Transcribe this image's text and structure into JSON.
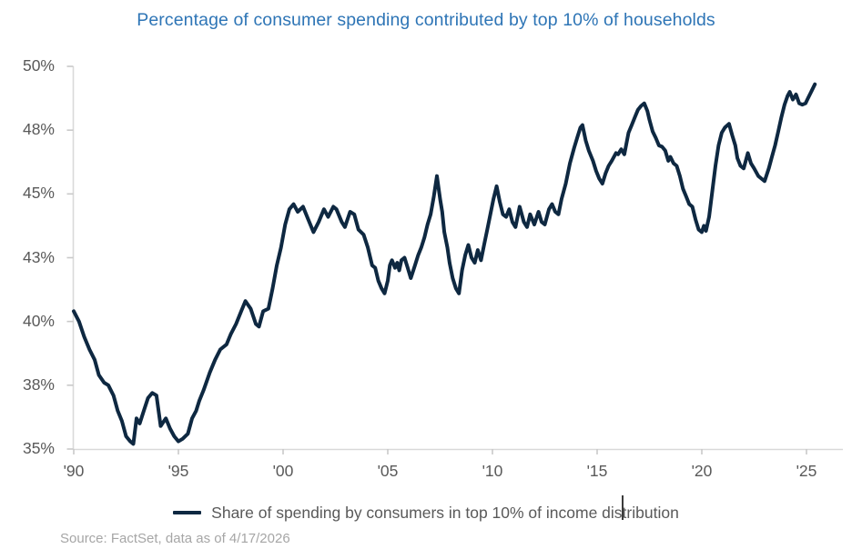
{
  "title": {
    "text": "Percentage of consumer spending contributed by top 10% of households",
    "color": "#2E75B6"
  },
  "legend": {
    "label": "Share of spending by consumers in top 10% of income distribution",
    "marker_color": "#0E2841"
  },
  "source": {
    "text": "Source: FactSet, data as of 4/17/2026"
  },
  "colors": {
    "line": "#0E2841",
    "axis": "#D9D9D9",
    "tick": "#C9C9C9",
    "tick_text": "#595959",
    "legend_text": "#595959",
    "source_text": "#A6A6A6"
  },
  "chart_data": {
    "type": "line",
    "title": "Percentage of consumer spending contributed by top 10% of households",
    "xlabel": "",
    "ylabel": "",
    "xlim": [
      1990,
      2026.2
    ],
    "ylim": [
      35,
      50
    ],
    "grid": false,
    "legend_position": "bottom",
    "x_ticks": [
      {
        "value": 1990,
        "label": "'90"
      },
      {
        "value": 1995,
        "label": "'95"
      },
      {
        "value": 2000,
        "label": "'00"
      },
      {
        "value": 2005,
        "label": "'05"
      },
      {
        "value": 2010,
        "label": "'10"
      },
      {
        "value": 2015,
        "label": "'15"
      },
      {
        "value": 2020,
        "label": "'20"
      },
      {
        "value": 2025,
        "label": "'25"
      }
    ],
    "y_ticks": [
      {
        "value": 35.0,
        "label": "35%"
      },
      {
        "value": 37.5,
        "label": "38%"
      },
      {
        "value": 40.0,
        "label": "40%"
      },
      {
        "value": 42.5,
        "label": "43%"
      },
      {
        "value": 45.0,
        "label": "45%"
      },
      {
        "value": 47.5,
        "label": "48%"
      },
      {
        "value": 50.0,
        "label": "50%"
      }
    ],
    "series": [
      {
        "name": "Share of spending by consumers in top 10% of income distribution",
        "color": "#0E2841",
        "points": [
          [
            1990.0,
            40.4
          ],
          [
            1990.25,
            40.0
          ],
          [
            1990.5,
            39.4
          ],
          [
            1990.75,
            38.9
          ],
          [
            1991.0,
            38.5
          ],
          [
            1991.2,
            37.9
          ],
          [
            1991.45,
            37.6
          ],
          [
            1991.65,
            37.5
          ],
          [
            1991.9,
            37.1
          ],
          [
            1992.1,
            36.5
          ],
          [
            1992.3,
            36.1
          ],
          [
            1992.5,
            35.5
          ],
          [
            1992.7,
            35.3
          ],
          [
            1992.85,
            35.2
          ],
          [
            1993.0,
            36.2
          ],
          [
            1993.15,
            36.0
          ],
          [
            1993.35,
            36.5
          ],
          [
            1993.55,
            37.0
          ],
          [
            1993.75,
            37.2
          ],
          [
            1993.95,
            37.1
          ],
          [
            1994.15,
            35.9
          ],
          [
            1994.4,
            36.2
          ],
          [
            1994.6,
            35.8
          ],
          [
            1994.8,
            35.5
          ],
          [
            1995.0,
            35.3
          ],
          [
            1995.2,
            35.4
          ],
          [
            1995.45,
            35.6
          ],
          [
            1995.65,
            36.2
          ],
          [
            1995.85,
            36.5
          ],
          [
            1996.0,
            36.9
          ],
          [
            1996.2,
            37.3
          ],
          [
            1996.5,
            38.0
          ],
          [
            1996.75,
            38.5
          ],
          [
            1997.0,
            38.9
          ],
          [
            1997.3,
            39.1
          ],
          [
            1997.5,
            39.5
          ],
          [
            1997.75,
            39.9
          ],
          [
            1998.0,
            40.4
          ],
          [
            1998.2,
            40.8
          ],
          [
            1998.45,
            40.5
          ],
          [
            1998.7,
            39.9
          ],
          [
            1998.85,
            39.8
          ],
          [
            1999.05,
            40.4
          ],
          [
            1999.3,
            40.5
          ],
          [
            1999.5,
            41.3
          ],
          [
            1999.7,
            42.2
          ],
          [
            1999.9,
            42.9
          ],
          [
            2000.1,
            43.8
          ],
          [
            2000.3,
            44.4
          ],
          [
            2000.5,
            44.6
          ],
          [
            2000.7,
            44.3
          ],
          [
            2000.95,
            44.5
          ],
          [
            2001.2,
            44.0
          ],
          [
            2001.45,
            43.5
          ],
          [
            2001.7,
            43.9
          ],
          [
            2001.95,
            44.4
          ],
          [
            2002.15,
            44.1
          ],
          [
            2002.4,
            44.5
          ],
          [
            2002.55,
            44.4
          ],
          [
            2002.8,
            43.9
          ],
          [
            2002.95,
            43.7
          ],
          [
            2003.2,
            44.3
          ],
          [
            2003.4,
            44.2
          ],
          [
            2003.6,
            43.6
          ],
          [
            2003.85,
            43.4
          ],
          [
            2004.05,
            42.9
          ],
          [
            2004.25,
            42.2
          ],
          [
            2004.4,
            42.1
          ],
          [
            2004.55,
            41.6
          ],
          [
            2004.7,
            41.3
          ],
          [
            2004.85,
            41.1
          ],
          [
            2005.0,
            41.6
          ],
          [
            2005.1,
            42.2
          ],
          [
            2005.2,
            42.4
          ],
          [
            2005.35,
            42.1
          ],
          [
            2005.45,
            42.3
          ],
          [
            2005.55,
            42.0
          ],
          [
            2005.65,
            42.4
          ],
          [
            2005.8,
            42.5
          ],
          [
            2005.95,
            42.1
          ],
          [
            2006.1,
            41.7
          ],
          [
            2006.3,
            42.2
          ],
          [
            2006.45,
            42.6
          ],
          [
            2006.6,
            42.9
          ],
          [
            2006.75,
            43.3
          ],
          [
            2006.9,
            43.8
          ],
          [
            2007.05,
            44.2
          ],
          [
            2007.2,
            44.9
          ],
          [
            2007.35,
            45.7
          ],
          [
            2007.5,
            44.8
          ],
          [
            2007.6,
            44.3
          ],
          [
            2007.7,
            43.5
          ],
          [
            2007.85,
            42.9
          ],
          [
            2007.95,
            42.3
          ],
          [
            2008.1,
            41.7
          ],
          [
            2008.25,
            41.3
          ],
          [
            2008.4,
            41.1
          ],
          [
            2008.55,
            42.0
          ],
          [
            2008.7,
            42.6
          ],
          [
            2008.85,
            43.0
          ],
          [
            2009.0,
            42.5
          ],
          [
            2009.15,
            42.3
          ],
          [
            2009.3,
            42.8
          ],
          [
            2009.45,
            42.4
          ],
          [
            2009.6,
            43.0
          ],
          [
            2009.75,
            43.6
          ],
          [
            2009.9,
            44.2
          ],
          [
            2010.05,
            44.8
          ],
          [
            2010.2,
            45.3
          ],
          [
            2010.35,
            44.7
          ],
          [
            2010.5,
            44.2
          ],
          [
            2010.65,
            44.1
          ],
          [
            2010.8,
            44.4
          ],
          [
            2010.95,
            43.9
          ],
          [
            2011.1,
            43.7
          ],
          [
            2011.3,
            44.5
          ],
          [
            2011.5,
            43.9
          ],
          [
            2011.65,
            43.7
          ],
          [
            2011.8,
            44.2
          ],
          [
            2012.0,
            43.8
          ],
          [
            2012.2,
            44.3
          ],
          [
            2012.35,
            43.9
          ],
          [
            2012.5,
            43.8
          ],
          [
            2012.7,
            44.4
          ],
          [
            2012.85,
            44.6
          ],
          [
            2013.0,
            44.3
          ],
          [
            2013.15,
            44.2
          ],
          [
            2013.3,
            44.8
          ],
          [
            2013.5,
            45.4
          ],
          [
            2013.7,
            46.2
          ],
          [
            2013.9,
            46.8
          ],
          [
            2014.05,
            47.2
          ],
          [
            2014.2,
            47.6
          ],
          [
            2014.3,
            47.7
          ],
          [
            2014.45,
            47.1
          ],
          [
            2014.6,
            46.7
          ],
          [
            2014.8,
            46.3
          ],
          [
            2014.95,
            45.9
          ],
          [
            2015.1,
            45.6
          ],
          [
            2015.25,
            45.4
          ],
          [
            2015.4,
            45.8
          ],
          [
            2015.55,
            46.1
          ],
          [
            2015.7,
            46.3
          ],
          [
            2015.9,
            46.6
          ],
          [
            2016.0,
            46.55
          ],
          [
            2016.15,
            46.75
          ],
          [
            2016.3,
            46.55
          ],
          [
            2016.5,
            47.4
          ],
          [
            2016.65,
            47.7
          ],
          [
            2016.8,
            48.0
          ],
          [
            2016.95,
            48.3
          ],
          [
            2017.1,
            48.45
          ],
          [
            2017.25,
            48.55
          ],
          [
            2017.4,
            48.25
          ],
          [
            2017.5,
            47.9
          ],
          [
            2017.65,
            47.45
          ],
          [
            2017.8,
            47.2
          ],
          [
            2017.95,
            46.9
          ],
          [
            2018.1,
            46.85
          ],
          [
            2018.25,
            46.7
          ],
          [
            2018.4,
            46.3
          ],
          [
            2018.5,
            46.45
          ],
          [
            2018.65,
            46.2
          ],
          [
            2018.8,
            46.1
          ],
          [
            2018.95,
            45.7
          ],
          [
            2019.1,
            45.2
          ],
          [
            2019.25,
            44.9
          ],
          [
            2019.4,
            44.6
          ],
          [
            2019.55,
            44.5
          ],
          [
            2019.7,
            44.0
          ],
          [
            2019.85,
            43.6
          ],
          [
            2020.0,
            43.5
          ],
          [
            2020.1,
            43.75
          ],
          [
            2020.2,
            43.55
          ],
          [
            2020.35,
            44.1
          ],
          [
            2020.5,
            45.1
          ],
          [
            2020.65,
            46.1
          ],
          [
            2020.8,
            46.9
          ],
          [
            2020.95,
            47.4
          ],
          [
            2021.1,
            47.6
          ],
          [
            2021.3,
            47.75
          ],
          [
            2021.45,
            47.3
          ],
          [
            2021.6,
            46.9
          ],
          [
            2021.7,
            46.4
          ],
          [
            2021.85,
            46.1
          ],
          [
            2022.0,
            46.0
          ],
          [
            2022.2,
            46.6
          ],
          [
            2022.35,
            46.2
          ],
          [
            2022.5,
            46.0
          ],
          [
            2022.7,
            45.7
          ],
          [
            2022.85,
            45.6
          ],
          [
            2023.0,
            45.5
          ],
          [
            2023.2,
            46.0
          ],
          [
            2023.35,
            46.45
          ],
          [
            2023.5,
            46.9
          ],
          [
            2023.65,
            47.45
          ],
          [
            2023.8,
            48.0
          ],
          [
            2023.95,
            48.5
          ],
          [
            2024.1,
            48.85
          ],
          [
            2024.2,
            49.0
          ],
          [
            2024.35,
            48.7
          ],
          [
            2024.5,
            48.9
          ],
          [
            2024.65,
            48.55
          ],
          [
            2024.8,
            48.5
          ],
          [
            2024.95,
            48.55
          ],
          [
            2025.1,
            48.8
          ],
          [
            2025.25,
            49.05
          ],
          [
            2025.4,
            49.3
          ]
        ]
      }
    ]
  }
}
